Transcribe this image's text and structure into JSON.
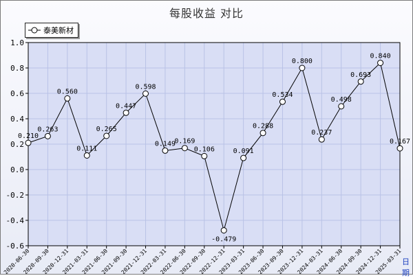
{
  "chart_data": {
    "type": "line",
    "title": "每股收益  对比",
    "xlabel": "日期",
    "ylabel": "",
    "ylim": [
      -0.6,
      1.0
    ],
    "yticks": [
      1.0,
      0.8,
      0.6,
      0.4,
      0.2,
      0.0,
      -0.2,
      -0.4,
      -0.6
    ],
    "ytick_labels": [
      "1.0",
      "0.8",
      "0.6",
      "0.4",
      "0.2",
      "0.0",
      "-0.2",
      "-0.4",
      "-0.6"
    ],
    "grid": true,
    "legend_position": "top-left",
    "categories": [
      "2020-06-30",
      "2020-09-30",
      "2020-12-31",
      "2021-03-31",
      "2021-06-30",
      "2021-09-30",
      "2021-12-31",
      "2022-03-31",
      "2022-06-30",
      "2022-09-30",
      "2022-12-31",
      "2023-03-31",
      "2023-06-30",
      "2023-09-30",
      "2023-12-31",
      "2024-03-31",
      "2024-06-30",
      "2024-09-30",
      "2024-12-31",
      "2025-03-31"
    ],
    "series": [
      {
        "name": "泰美新材",
        "color": "#000000",
        "values": [
          0.21,
          0.263,
          0.56,
          0.111,
          0.265,
          0.447,
          0.598,
          0.149,
          0.169,
          0.106,
          -0.479,
          0.091,
          0.288,
          0.534,
          0.8,
          0.237,
          0.498,
          0.693,
          0.84,
          0.167
        ],
        "labels": [
          "0.210",
          "0.263",
          "0.560",
          "0.111",
          "0.265",
          "0.447",
          "0.598",
          "0.149",
          "0.169",
          "0.106",
          "-0.479",
          "0.091",
          "0.288",
          "0.534",
          "0.800",
          "0.237",
          "0.498",
          "0.693",
          "0.840",
          "0.167"
        ]
      }
    ]
  },
  "colors": {
    "plot_background": "#d9def5",
    "grid": "#b9c2e6",
    "line": "#000000"
  }
}
